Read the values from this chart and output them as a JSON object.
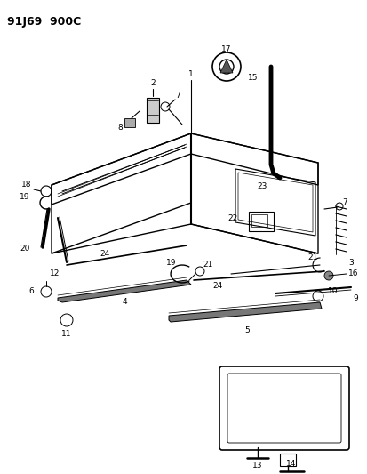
{
  "title": "91J69  900C",
  "bg_color": "#ffffff",
  "line_color": "#000000",
  "text_color": "#000000",
  "fig_width": 4.14,
  "fig_height": 5.33,
  "dpi": 100
}
